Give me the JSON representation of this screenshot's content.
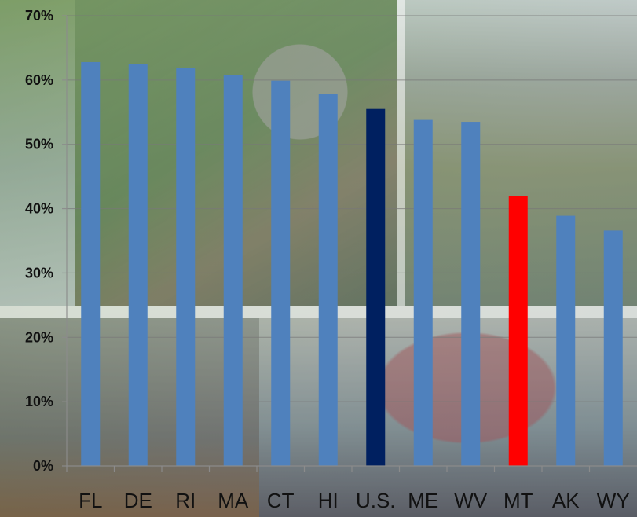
{
  "chart_data": {
    "type": "bar",
    "categories": [
      "FL",
      "DE",
      "RI",
      "MA",
      "CT",
      "HI",
      "U.S.",
      "ME",
      "WV",
      "MT",
      "AK",
      "WY"
    ],
    "values": [
      62.8,
      62.5,
      61.9,
      60.8,
      59.9,
      57.8,
      55.5,
      53.8,
      53.5,
      42.0,
      38.9,
      36.6
    ],
    "bar_colors": [
      "#4F81BD",
      "#4F81BD",
      "#4F81BD",
      "#4F81BD",
      "#4F81BD",
      "#4F81BD",
      "#002060",
      "#4F81BD",
      "#4F81BD",
      "#FF0000",
      "#4F81BD",
      "#4F81BD"
    ],
    "ylim": [
      0,
      70
    ],
    "yticks": [
      "0%",
      "10%",
      "20%",
      "30%",
      "40%",
      "50%",
      "60%",
      "70%"
    ],
    "grid": true,
    "title": "",
    "xlabel": "",
    "ylabel": ""
  },
  "colors": {
    "default_bar": "#4F81BD",
    "us_bar": "#002060",
    "highlight_bar": "#FF0000"
  }
}
